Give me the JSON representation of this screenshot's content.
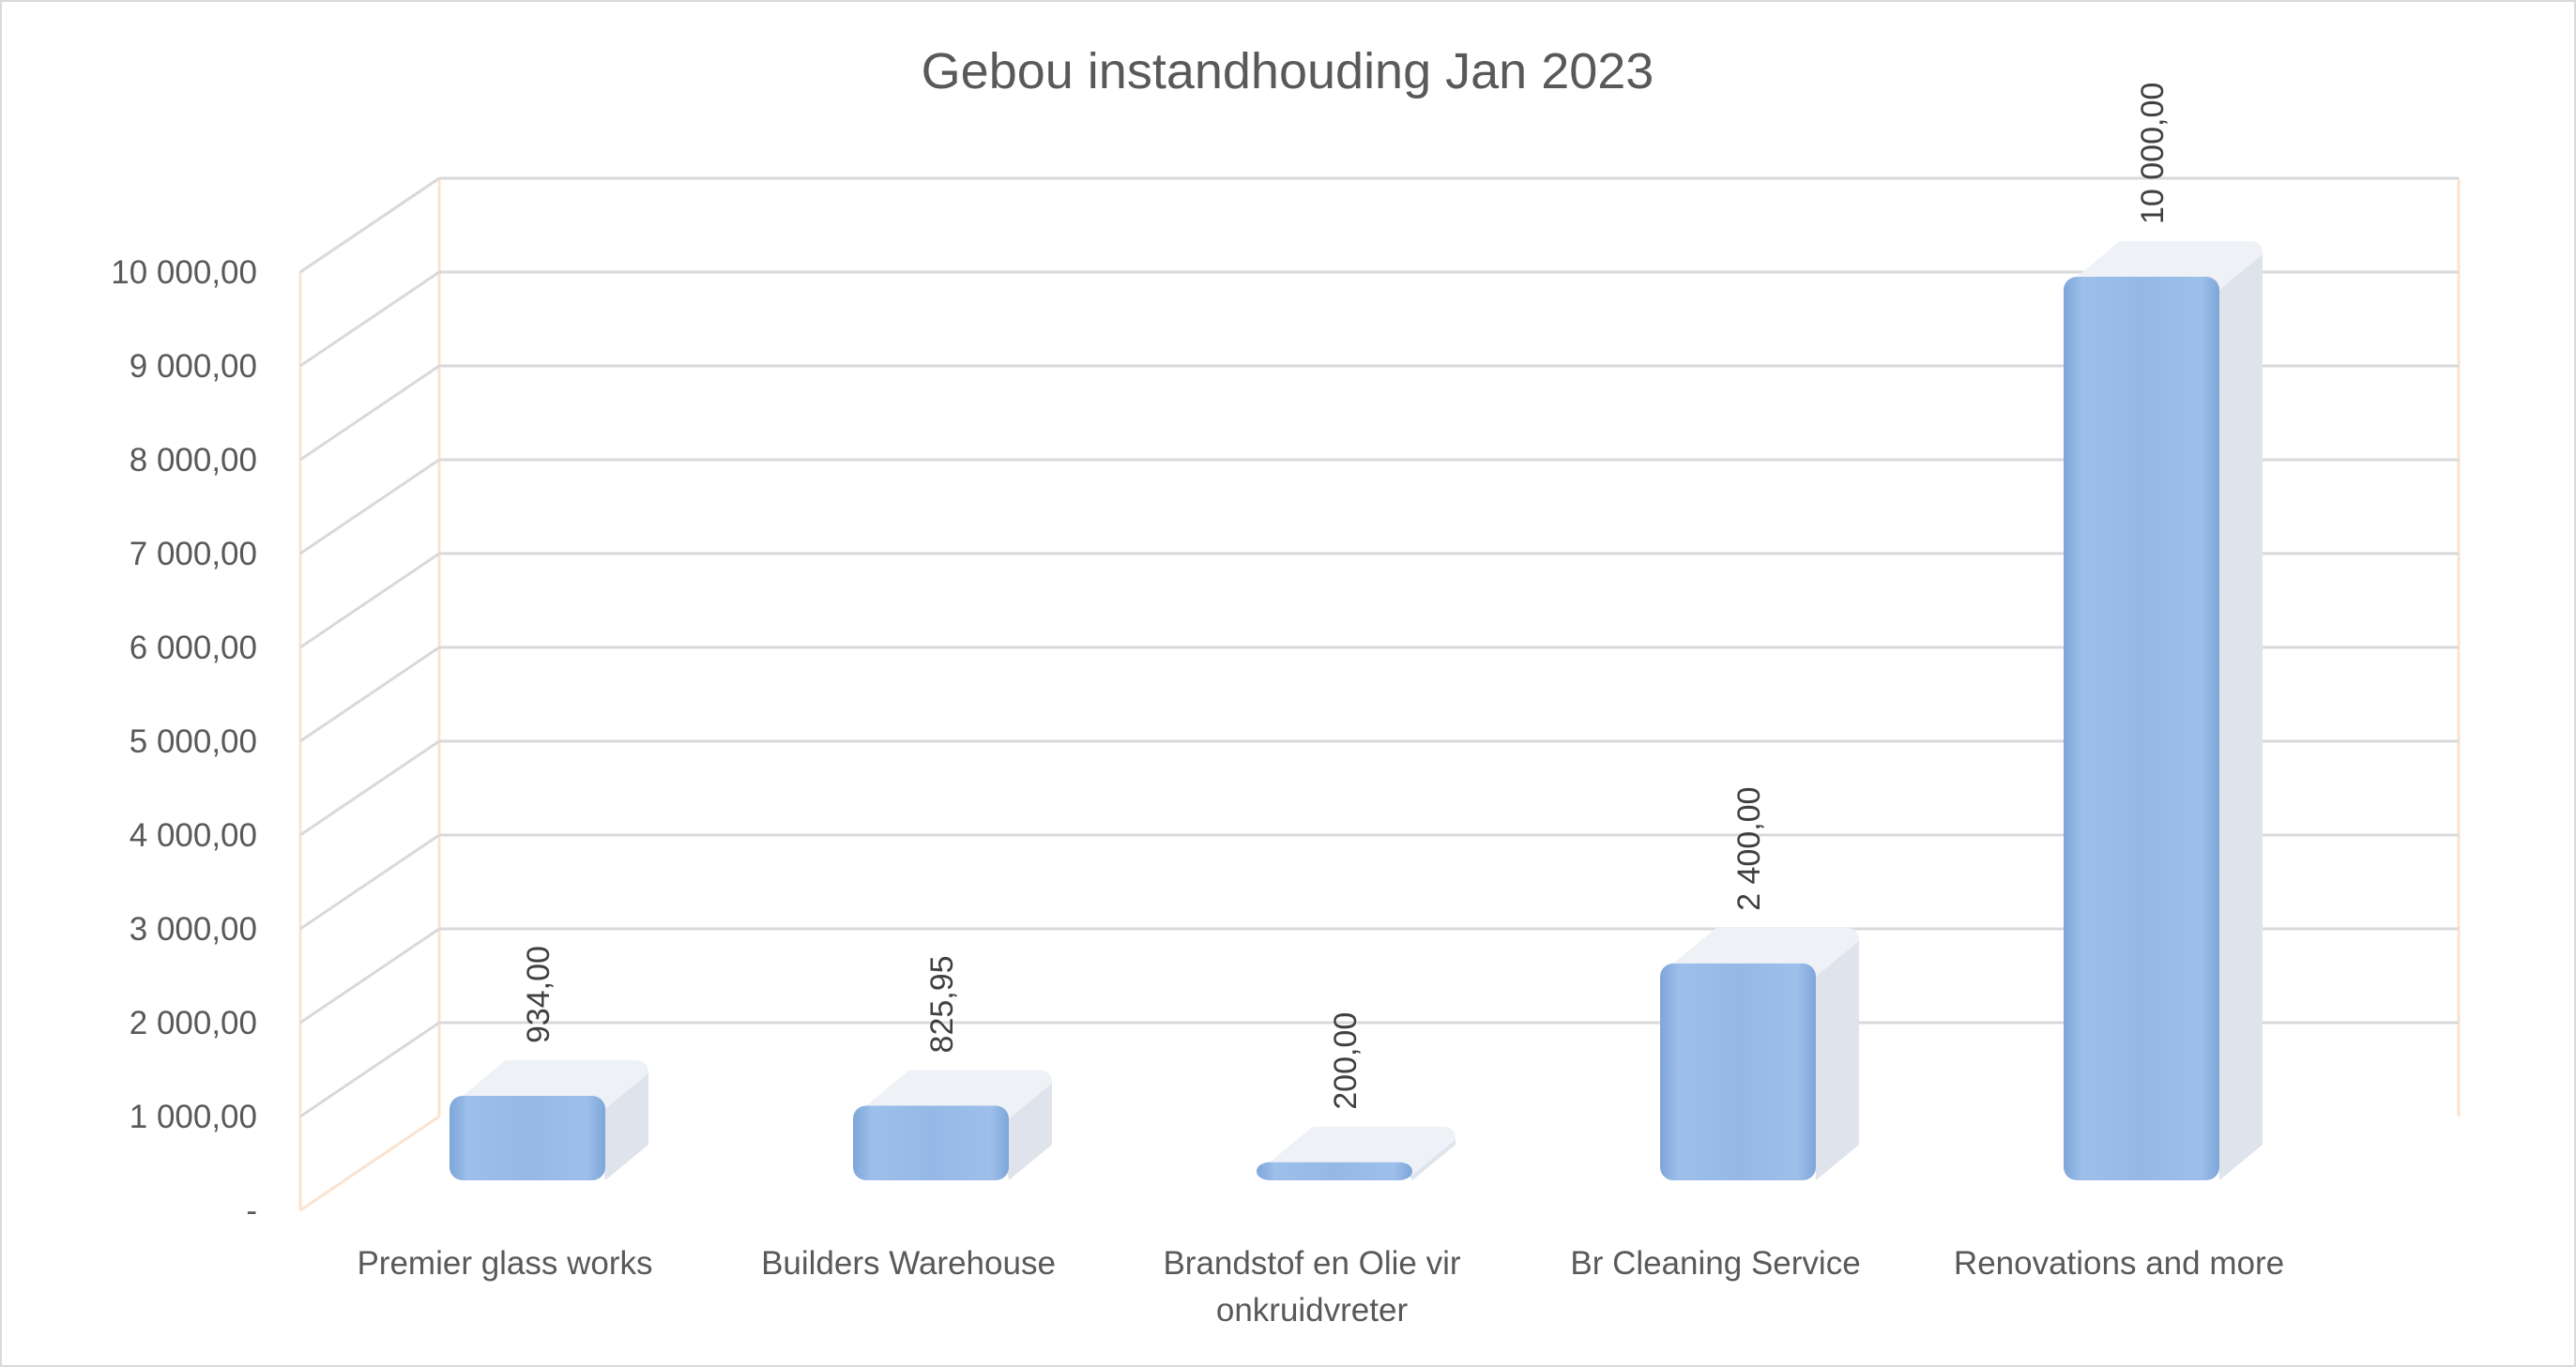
{
  "chart_data": {
    "type": "bar",
    "title": "Gebou instandhouding Jan 2023",
    "categories": [
      "Premier glass works",
      "Builders Warehouse",
      "Brandstof en Olie vir onkruidvreter",
      "Br Cleaning Service",
      "Renovations and more"
    ],
    "category_label_lines": [
      [
        "Premier glass works"
      ],
      [
        "Builders Warehouse"
      ],
      [
        "Brandstof en Olie vir",
        "onkruidvreter"
      ],
      [
        "Br Cleaning Service"
      ],
      [
        "Renovations and more"
      ]
    ],
    "values": [
      934.0,
      825.95,
      200.0,
      2400.0,
      10000.0
    ],
    "value_labels": [
      "934,00",
      "825,95",
      "200,00",
      "2 400,00",
      "10 000,00"
    ],
    "ylim": [
      0,
      10000
    ],
    "y_ticks": [
      0,
      1000,
      2000,
      3000,
      4000,
      5000,
      6000,
      7000,
      8000,
      9000,
      10000
    ],
    "y_tick_labels": [
      "-",
      "1 000,00",
      "2 000,00",
      "3 000,00",
      "4 000,00",
      "5 000,00",
      "6 000,00",
      "7 000,00",
      "8 000,00",
      "9 000,00",
      "10 000,00"
    ],
    "xlabel": "",
    "ylabel": "",
    "grid": true,
    "style": "3d-column",
    "legend": "none",
    "colors": {
      "bar": "#8fb4e3",
      "bar_side": "#dfe4ec",
      "bar_top": "#eef1f6",
      "grid": "#d9d9d9",
      "wall_edge": "#fbe3cf",
      "text": "#595959"
    }
  }
}
